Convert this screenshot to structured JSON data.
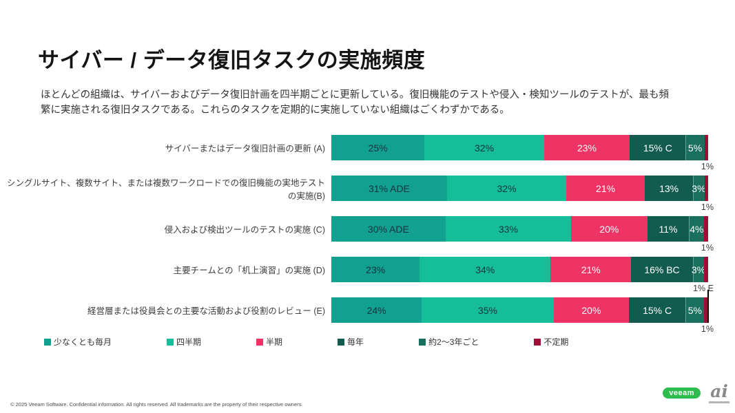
{
  "slide": {
    "title": "サイバー / データ復旧タスクの実施頻度",
    "subtitle": "ほとんどの組織は、サイバーおよびデータ復旧計画を四半期ごとに更新している。復旧機能のテストや侵入・検知ツールのテストが、最も頻繁に実施される復旧タスクである。これらのタスクを定期的に実施していない組織はごくわずかである。",
    "footer": "© 2025 Veeam Software. Confidential information. All rights reserved. All trademarks are the property of their respective owners.",
    "logos": {
      "veeam": "veeam",
      "ai": "ai"
    }
  },
  "chart_data": {
    "type": "bar",
    "stacked": true,
    "orientation": "horizontal",
    "legend_position": "bottom",
    "categories": [
      "サイバーまたはデータ復旧計画の更新 (A)",
      "シングルサイト、複数サイト、または複数ワークロードでの復旧機能の実地テストの実施(B)",
      "侵入および検出ツールのテストの実施 (C)",
      "主要チームとの「机上演習」の実施 (D)",
      "経営層または役員会との主要な活動および役割のレビュー (E)"
    ],
    "series": [
      {
        "name": "少なくとも毎月",
        "color": "#12a091",
        "label_color": "#16323c",
        "values": [
          25,
          31,
          30,
          23,
          24
        ],
        "labels": [
          "25%",
          "31% ADE",
          "30% ADE",
          "23%",
          "24%"
        ]
      },
      {
        "name": "四半期",
        "color": "#16bd99",
        "label_color": "#16323c",
        "values": [
          32,
          32,
          33,
          34,
          35
        ],
        "labels": [
          "32%",
          "32%",
          "33%",
          "34%",
          "35%"
        ]
      },
      {
        "name": "半期",
        "color": "#ee3465",
        "label_color": "#ffffff",
        "values": [
          23,
          21,
          20,
          21,
          20
        ],
        "labels": [
          "23%",
          "21%",
          "20%",
          "21%",
          "20%"
        ]
      },
      {
        "name": "毎年",
        "color": "#125b4f",
        "label_color": "#ffffff",
        "values": [
          15,
          13,
          11,
          16,
          15
        ],
        "labels": [
          "15% C",
          "13%",
          "11%",
          "16% BC",
          "15% C"
        ]
      },
      {
        "name": "約2〜3年ごと",
        "color": "#1a705f",
        "label_color": "#ffffff",
        "values": [
          5,
          3,
          4,
          3,
          5
        ],
        "labels": [
          "5%",
          "3%",
          "4%",
          "3%",
          "5%"
        ]
      },
      {
        "name": "不定期",
        "color": "#9e0f35",
        "label_color": "#ffffff",
        "values": [
          1,
          1,
          1,
          1,
          1
        ],
        "labels": [
          "",
          "",
          "",
          "",
          ""
        ]
      }
    ],
    "outside_labels": [
      "1%",
      "1%",
      "1%",
      "1% E",
      "1%"
    ],
    "annotation": {
      "row_index": 4,
      "shape": "vertical-leader-line"
    }
  }
}
